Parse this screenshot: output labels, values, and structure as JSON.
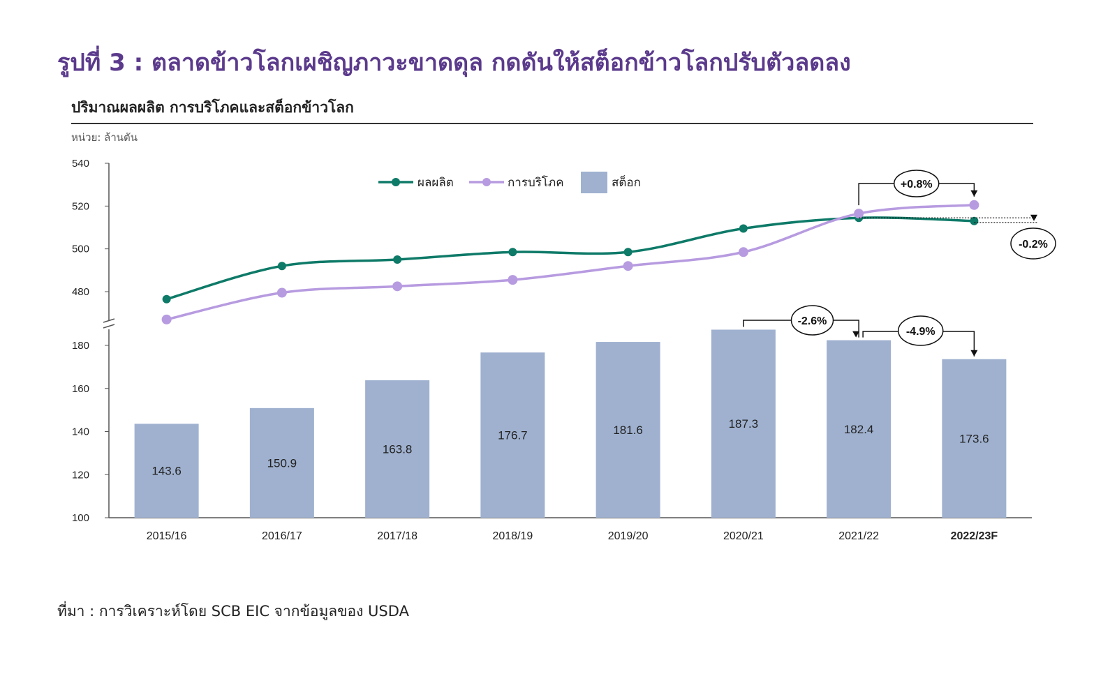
{
  "figure_title": "รูปที่ 3 : ตลาดข้าวโลกเผชิญภาวะขาดดุล กดดันให้สต็อกข้าวโลกปรับตัวลดลง",
  "source": "ที่มา : การวิเคราะห์โดย SCB EIC จากข้อมูลของ USDA",
  "colors": {
    "title": "#5b3a8c",
    "production": "#0e7a68",
    "consumption": "#b79be0",
    "stock": "#9fb1cf"
  },
  "chart_data": {
    "type": "bar+line",
    "title": "ปริมาณผลผลิต  การบริโภคและสต็อกข้าวโลก",
    "unit": "หน่วย: ล้านตัน",
    "categories": [
      "2015/16",
      "2016/17",
      "2017/18",
      "2018/19",
      "2019/20",
      "2020/21",
      "2021/22",
      "2022/23F"
    ],
    "axis_break": true,
    "upper_axis": {
      "ticks": [
        480,
        500,
        520,
        540
      ],
      "ylim": [
        466,
        540
      ]
    },
    "lower_axis": {
      "ticks": [
        100,
        120,
        140,
        160,
        180
      ],
      "ylim": [
        100,
        187
      ]
    },
    "series": [
      {
        "name": "ผลผลิต",
        "type": "line",
        "values": [
          476.5,
          492.0,
          495.0,
          498.5,
          498.5,
          509.5,
          514.5,
          513.0
        ]
      },
      {
        "name": "การบริโภค",
        "type": "line",
        "values": [
          467.0,
          479.5,
          482.5,
          485.5,
          492.0,
          498.5,
          516.5,
          520.5
        ]
      },
      {
        "name": "สต็อก",
        "type": "bar",
        "values": [
          143.6,
          150.9,
          163.8,
          176.7,
          181.6,
          187.3,
          182.4,
          173.6
        ]
      }
    ],
    "annotations": [
      {
        "text": "+0.8%"
      },
      {
        "text": "-0.2%"
      },
      {
        "text": "-2.6%"
      },
      {
        "text": "-4.9%"
      }
    ],
    "legend_position": "top-center"
  }
}
